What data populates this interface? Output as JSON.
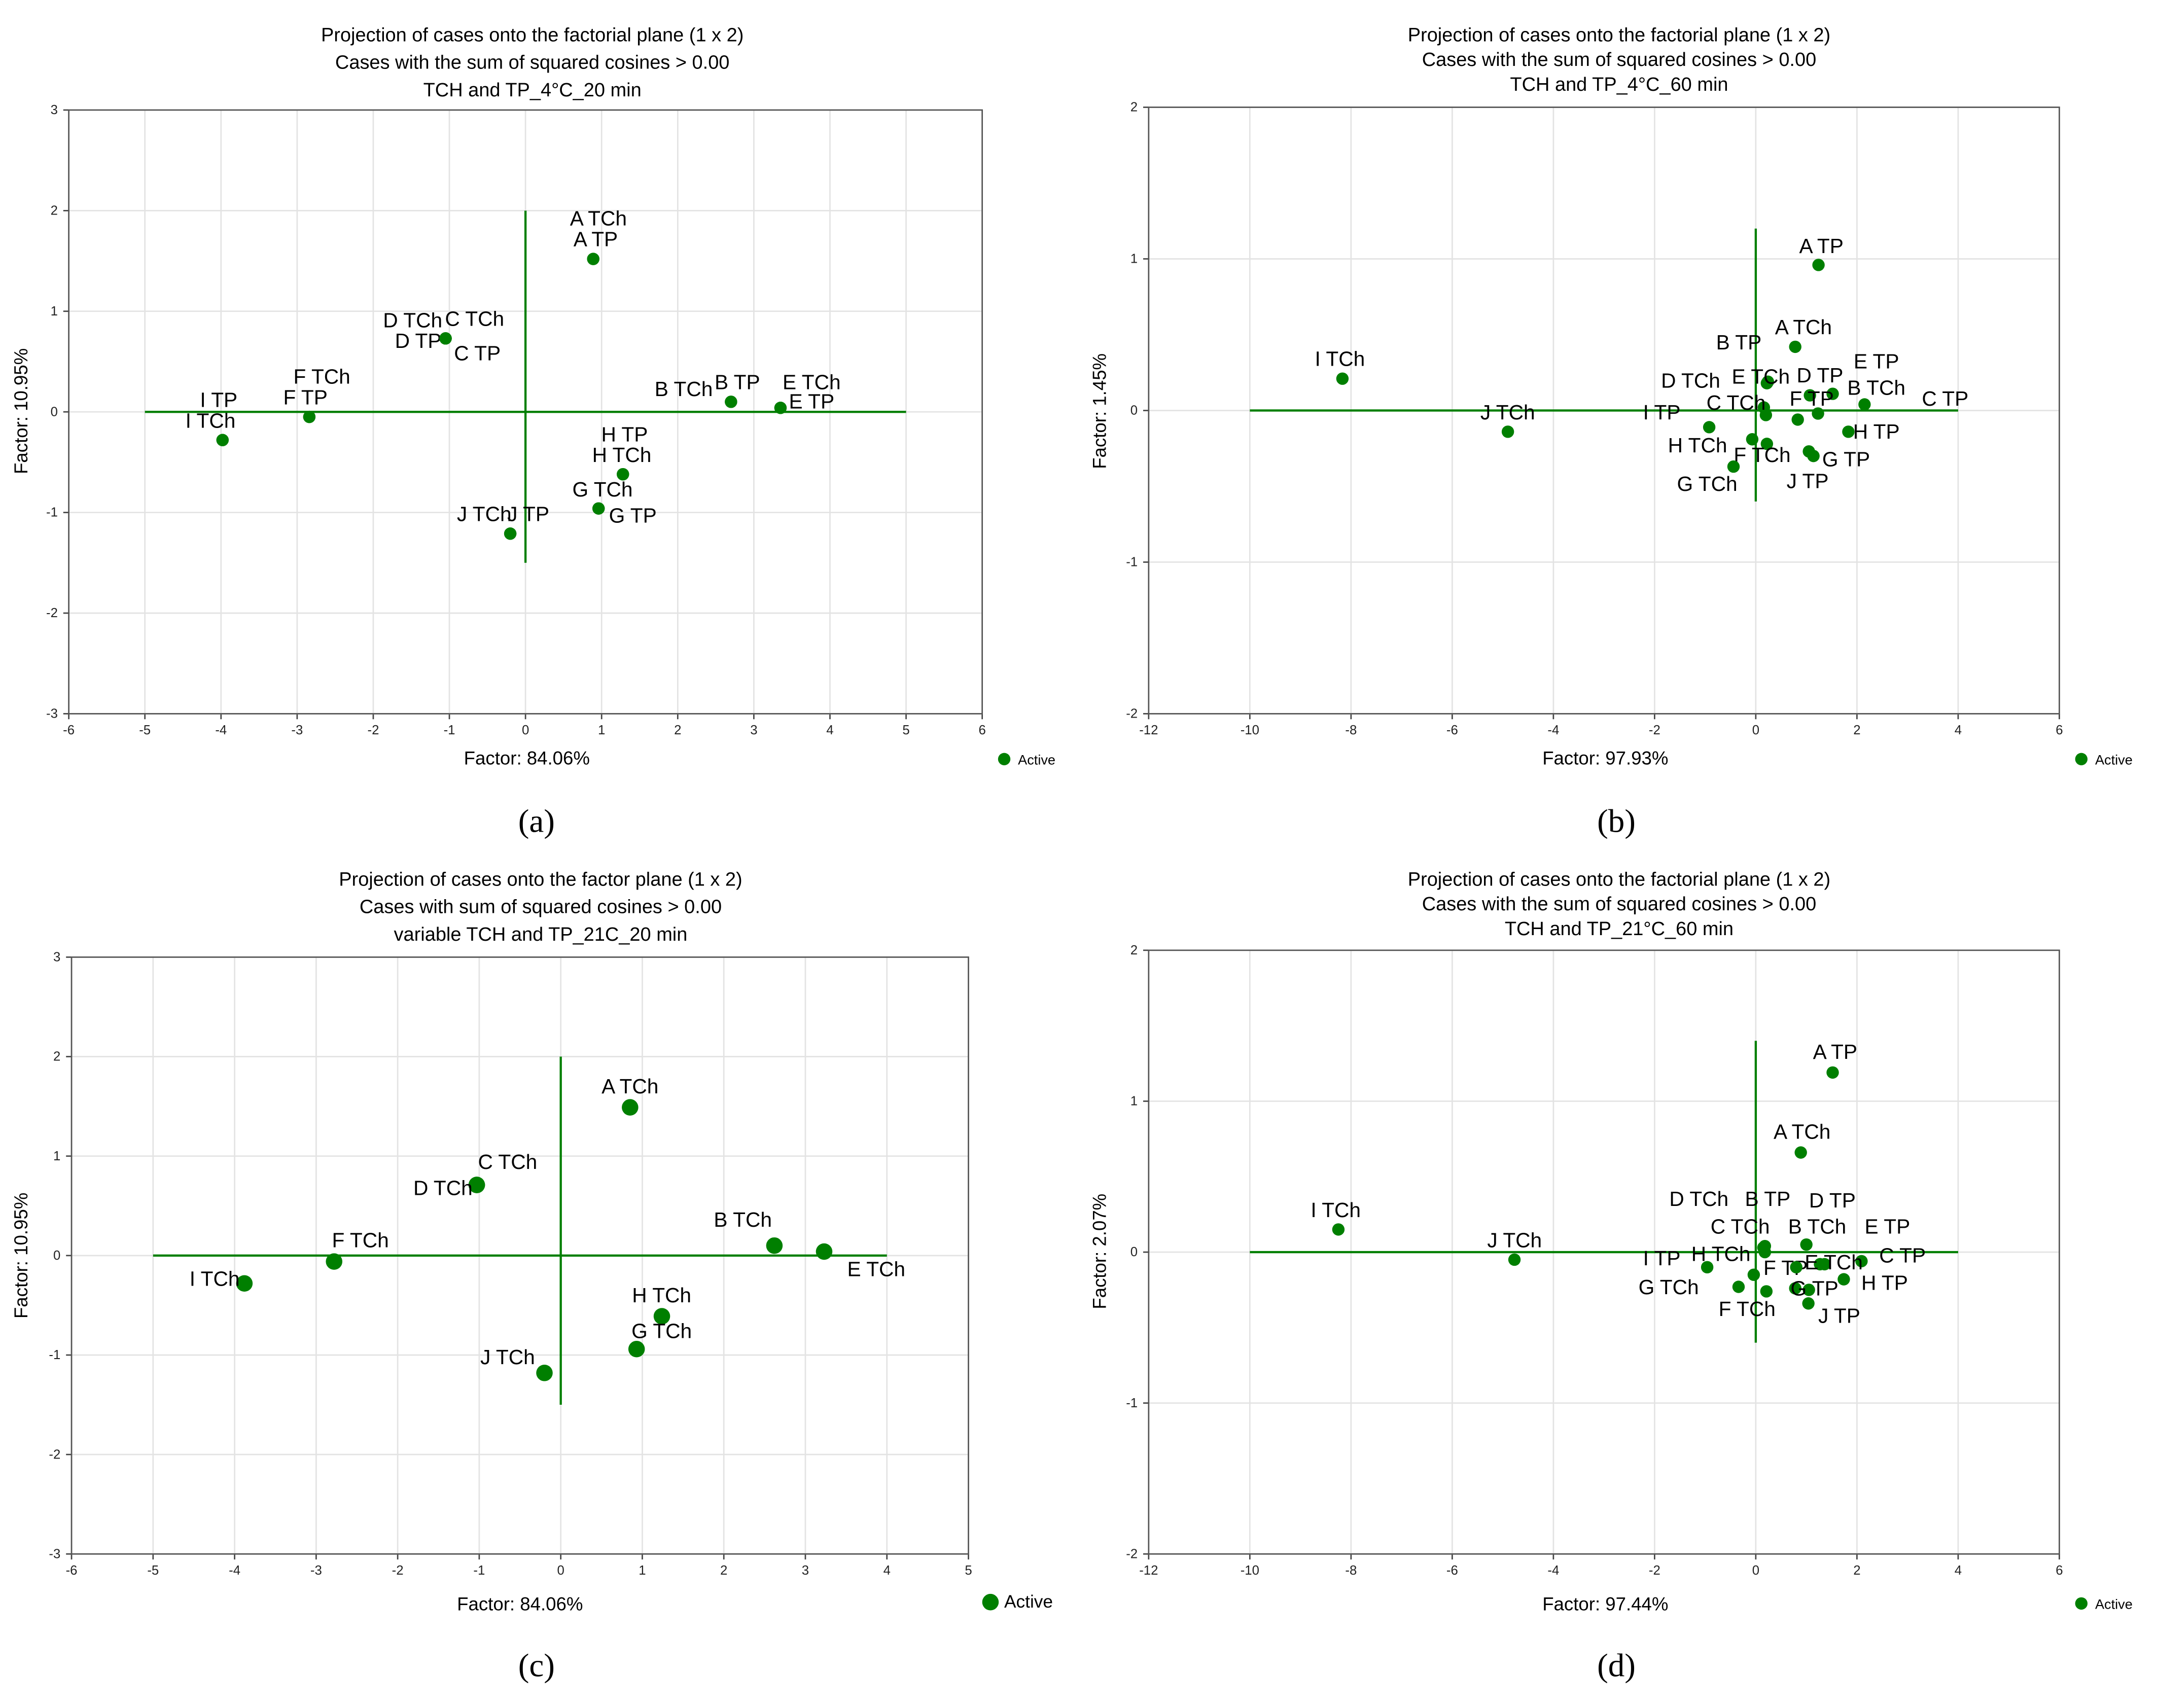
{
  "chart_data": [
    {
      "type": "scatter",
      "panel_label": "(a)",
      "title": [
        "Projection of cases onto the factorial plane (1 x 2)",
        "Cases with the sum of squared cosines > 0.00",
        "TCH and TP_4°C_20 min"
      ],
      "xlabel": "Factor: 84.06%",
      "ylabel": "Factor: 10.95%",
      "xlim": [
        -6,
        6
      ],
      "ylim": [
        -3,
        3
      ],
      "xticks": [
        -6,
        -5,
        -4,
        -3,
        -2,
        -1,
        0,
        1,
        2,
        3,
        4,
        5,
        6
      ],
      "yticks": [
        -3,
        -2,
        -1,
        0,
        1,
        2,
        3
      ],
      "grid": true,
      "legend": "Active",
      "legend_position": "bottom-right",
      "marker_color": "#007f00",
      "points": [
        {
          "label": "A TCh",
          "x": 0.89,
          "y": 1.52
        },
        {
          "label": "A TP",
          "x": 0.89,
          "y": 1.52
        },
        {
          "label": "D TCh",
          "x": -1.05,
          "y": 0.73
        },
        {
          "label": "C TCh",
          "x": -1.05,
          "y": 0.73
        },
        {
          "label": "D TP",
          "x": -1.05,
          "y": 0.73
        },
        {
          "label": "C TP",
          "x": -1.05,
          "y": 0.73
        },
        {
          "label": "B TCh",
          "x": 2.7,
          "y": 0.1
        },
        {
          "label": "B TP",
          "x": 2.7,
          "y": 0.1
        },
        {
          "label": "E TCh",
          "x": 3.35,
          "y": 0.04
        },
        {
          "label": "E TP",
          "x": 3.35,
          "y": 0.04
        },
        {
          "label": "F TCh",
          "x": -2.84,
          "y": -0.05
        },
        {
          "label": "F TP",
          "x": -2.84,
          "y": -0.05
        },
        {
          "label": "I TP",
          "x": -3.98,
          "y": -0.28
        },
        {
          "label": "I TCh",
          "x": -3.98,
          "y": -0.28
        },
        {
          "label": "H TP",
          "x": 1.28,
          "y": -0.62
        },
        {
          "label": "H TCh",
          "x": 1.28,
          "y": -0.62
        },
        {
          "label": "G TCh",
          "x": 0.96,
          "y": -0.96
        },
        {
          "label": "G TP",
          "x": 0.96,
          "y": -0.96
        },
        {
          "label": "J TCh",
          "x": -0.2,
          "y": -1.21
        },
        {
          "label": "J TP",
          "x": -0.2,
          "y": -1.21
        }
      ]
    },
    {
      "type": "scatter",
      "panel_label": "(b)",
      "title": [
        "Projection of cases onto the factorial plane (1 x 2)",
        "Cases with the sum of squared cosines > 0.00",
        "TCH and TP_4°C_60 min"
      ],
      "xlabel": "Factor: 97.93%",
      "ylabel": "Factor:  1.45%",
      "xlim": [
        -12,
        6
      ],
      "ylim": [
        -2,
        2
      ],
      "xticks": [
        -12,
        -10,
        -8,
        -6,
        -4,
        -2,
        0,
        2,
        4,
        6
      ],
      "yticks": [
        -2,
        -1,
        0,
        1,
        2
      ],
      "grid": true,
      "legend": "Active",
      "legend_position": "bottom-right",
      "marker_color": "#007f00",
      "points": [
        {
          "label": "I TCh",
          "x": -8.17,
          "y": 0.21
        },
        {
          "label": "J TCh",
          "x": -4.9,
          "y": -0.14
        },
        {
          "label": "A TP",
          "x": 1.24,
          "y": 0.96
        },
        {
          "label": "A TCh",
          "x": 0.78,
          "y": 0.42
        },
        {
          "label": "B TP",
          "x": 0.22,
          "y": 0.18
        },
        {
          "label": "D TCh",
          "x": 0.2,
          "y": -0.03
        },
        {
          "label": "E TCh",
          "x": 0.24,
          "y": 0.19
        },
        {
          "label": "D TP",
          "x": 1.07,
          "y": 0.1
        },
        {
          "label": "E TP",
          "x": 1.52,
          "y": 0.11
        },
        {
          "label": "B TCh",
          "x": 1.23,
          "y": -0.02
        },
        {
          "label": "C TP",
          "x": 2.15,
          "y": 0.04
        },
        {
          "label": "C TCh",
          "x": 0.16,
          "y": 0.02
        },
        {
          "label": "I TP",
          "x": -0.92,
          "y": -0.11
        },
        {
          "label": "F TP",
          "x": 0.83,
          "y": -0.06
        },
        {
          "label": "H TP",
          "x": 1.83,
          "y": -0.14
        },
        {
          "label": "H TCh",
          "x": -0.07,
          "y": -0.19
        },
        {
          "label": "F TCh",
          "x": 0.22,
          "y": -0.22
        },
        {
          "label": "G TP",
          "x": 1.05,
          "y": -0.27
        },
        {
          "label": "J TP",
          "x": 1.14,
          "y": -0.3
        },
        {
          "label": "G TCh",
          "x": -0.44,
          "y": -0.37
        }
      ]
    },
    {
      "type": "scatter",
      "panel_label": "(c)",
      "title": [
        "Projection of cases onto the factor plane (1 x 2)",
        "Cases with sum of squared cosines > 0.00",
        "variable TCH and TP_21C_20 min"
      ],
      "xlabel": "Factor: 84.06%",
      "ylabel": "Factor: 10.95%",
      "xlim": [
        -6,
        5
      ],
      "ylim": [
        -3,
        3
      ],
      "xticks": [
        -6,
        -5,
        -4,
        -3,
        -2,
        -1,
        0,
        1,
        2,
        3,
        4,
        5
      ],
      "yticks": [
        -3,
        -2,
        -1,
        0,
        1,
        2,
        3
      ],
      "grid": true,
      "legend": "Active",
      "legend_position": "bottom-right",
      "marker_color": "#007f00",
      "points": [
        {
          "label": "A TCh",
          "x": 0.85,
          "y": 1.49
        },
        {
          "label": "C TCh",
          "x": -1.03,
          "y": 0.71
        },
        {
          "label": "D TCh",
          "x": -1.03,
          "y": 0.71
        },
        {
          "label": "B TCh",
          "x": 2.62,
          "y": 0.1
        },
        {
          "label": "E TCh",
          "x": 3.23,
          "y": 0.04
        },
        {
          "label": "F TCh",
          "x": -2.78,
          "y": -0.06
        },
        {
          "label": "I TCh",
          "x": -3.88,
          "y": -0.28
        },
        {
          "label": "H TCh",
          "x": 1.24,
          "y": -0.61
        },
        {
          "label": "G TCh",
          "x": 0.93,
          "y": -0.94
        },
        {
          "label": "J TCh",
          "x": -0.2,
          "y": -1.18
        }
      ]
    },
    {
      "type": "scatter",
      "panel_label": "(d)",
      "title": [
        "Projection of cases onto the factorial plane (1 x 2)",
        "Cases with the sum of squared cosines > 0.00",
        "TCH and TP_21°C_60 min"
      ],
      "xlabel": "Factor: 97.44%",
      "ylabel": "Factor:  2.07%",
      "xlim": [
        -12,
        6
      ],
      "ylim": [
        -2,
        2
      ],
      "xticks": [
        -12,
        -10,
        -8,
        -6,
        -4,
        -2,
        0,
        2,
        4,
        6
      ],
      "yticks": [
        -2,
        -1,
        0,
        1,
        2
      ],
      "grid": true,
      "legend": "Active",
      "legend_position": "bottom-right",
      "marker_color": "#007f00",
      "points": [
        {
          "label": "I TCh",
          "x": -8.25,
          "y": 0.15
        },
        {
          "label": "J TCh",
          "x": -4.77,
          "y": -0.05
        },
        {
          "label": "A TP",
          "x": 1.52,
          "y": 1.19
        },
        {
          "label": "A TCh",
          "x": 0.89,
          "y": 0.66
        },
        {
          "label": "D TCh",
          "x": 0.15,
          "y": 0.03
        },
        {
          "label": "B TP",
          "x": 0.18,
          "y": 0.04
        },
        {
          "label": "D TP",
          "x": 1.0,
          "y": 0.05
        },
        {
          "label": "C TCh",
          "x": 0.18,
          "y": 0.0
        },
        {
          "label": "B TCh",
          "x": 1.36,
          "y": -0.08
        },
        {
          "label": "E TP",
          "x": 1.27,
          "y": -0.08
        },
        {
          "label": "I TP",
          "x": -0.96,
          "y": -0.1
        },
        {
          "label": "H TCh",
          "x": -0.04,
          "y": -0.15
        },
        {
          "label": "C TP",
          "x": 2.09,
          "y": -0.06
        },
        {
          "label": "F TP",
          "x": 0.78,
          "y": -0.24
        },
        {
          "label": "E TCh",
          "x": 0.8,
          "y": -0.1
        },
        {
          "label": "H TP",
          "x": 1.74,
          "y": -0.18
        },
        {
          "label": "G TCh",
          "x": -0.34,
          "y": -0.23
        },
        {
          "label": "G TP",
          "x": 1.05,
          "y": -0.25
        },
        {
          "label": "F TCh",
          "x": 0.21,
          "y": -0.26
        },
        {
          "label": "J TP",
          "x": 1.04,
          "y": -0.34
        }
      ]
    }
  ]
}
